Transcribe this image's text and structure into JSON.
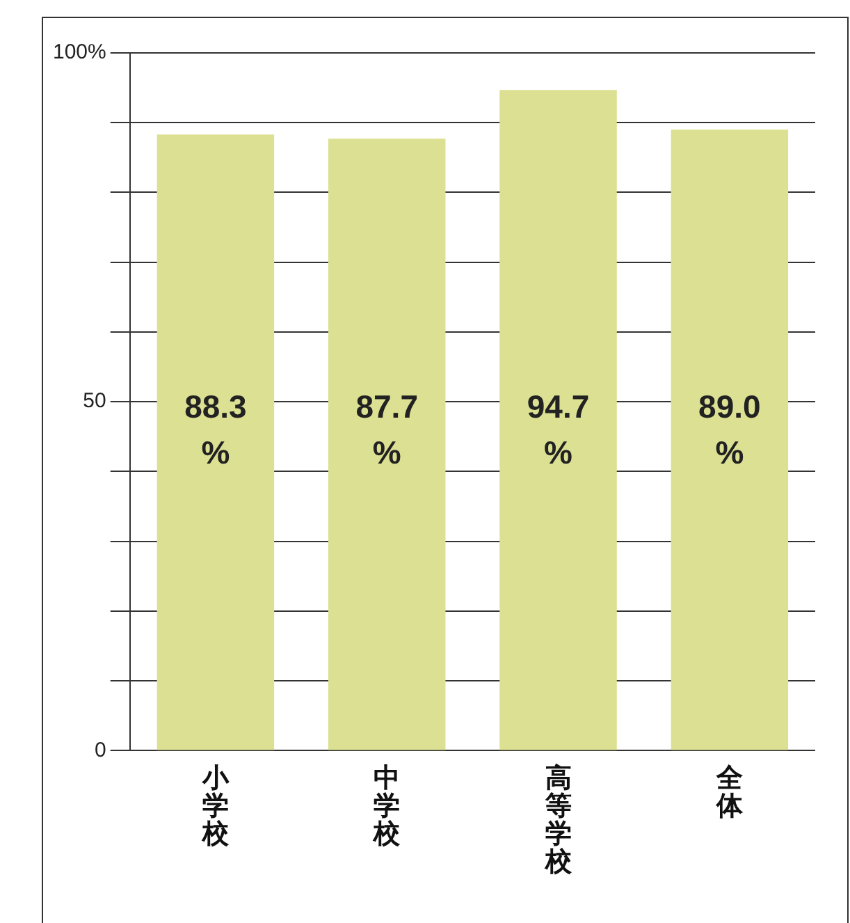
{
  "chart_data": {
    "type": "bar",
    "categories": [
      "小学校",
      "中学校",
      "高等学校",
      "全体"
    ],
    "values": [
      88.3,
      87.7,
      94.7,
      89.0
    ],
    "color": "#dce092",
    "value_labels": [
      "88.3%",
      "87.7%",
      "94.7%",
      "89.0%"
    ],
    "ylim": [
      0,
      100
    ],
    "yticks": [
      0,
      {
        "value": 10,
        "label": null
      },
      {
        "value": 20,
        "label": null
      },
      {
        "value": 30,
        "label": null
      },
      {
        "value": 40,
        "label": null
      },
      50,
      {
        "value": 60,
        "label": null
      },
      {
        "value": 70,
        "label": null
      },
      {
        "value": 80,
        "label": null
      },
      {
        "value": 90,
        "label": null
      },
      {
        "value": 100,
        "label": "100%"
      }
    ],
    "grid": "y",
    "legend": false
  }
}
